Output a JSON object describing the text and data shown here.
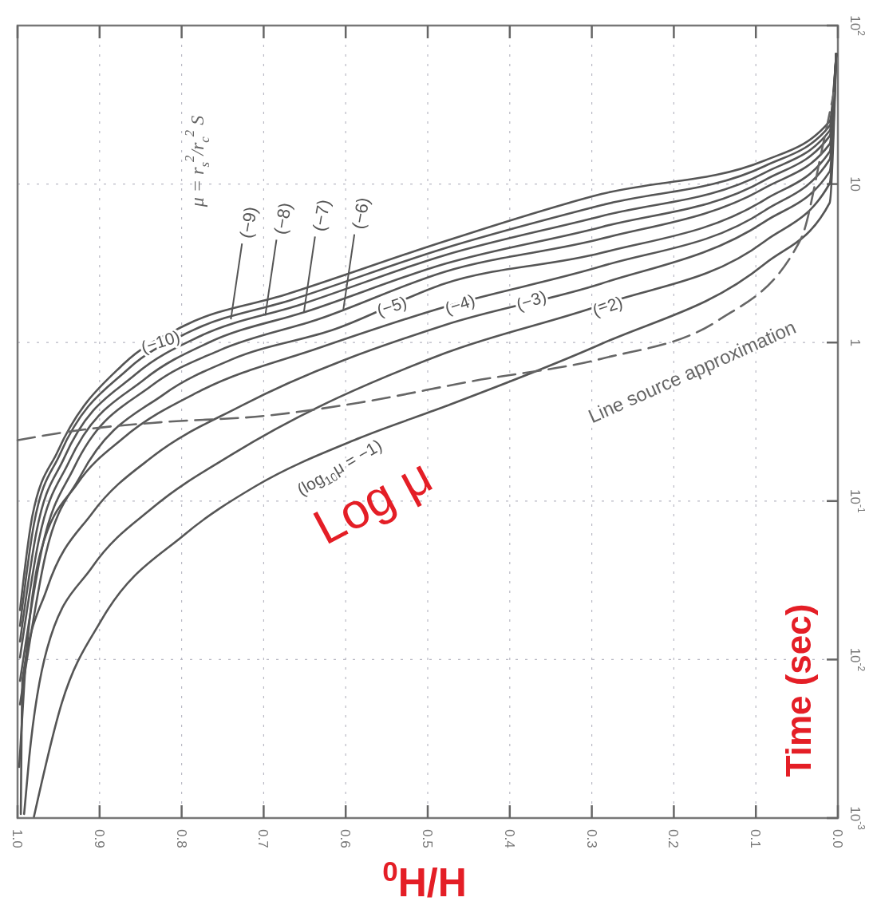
{
  "chart_data": {
    "type": "line",
    "xlabel": "$^{0}$H/H",
    "ylabel": "Time (sec)",
    "log": "y",
    "grid": true,
    "line_style": "solid",
    "marker": "none",
    "xlim": [
      1.0,
      0.0
    ],
    "xticks": [
      {
        "value": 1.0,
        "label": "1.0"
      },
      0.9,
      0.8,
      0.7,
      0.6,
      0.5,
      0.4,
      0.3,
      0.2,
      0.1,
      {
        "value": 0.0,
        "label": "0.0"
      }
    ],
    "ylim": [
      0.001,
      100
    ],
    "yticks": [
      {
        "value": 0.001,
        "label": "10$^{-3}$"
      },
      {
        "value": 0.01,
        "label": "10$^{-2}$"
      },
      {
        "value": 0.1,
        "label": "10$^{-1}$"
      },
      1,
      10,
      {
        "value": 100,
        "label": "10$^{2}$"
      }
    ],
    "series": [
      {
        "color": "#555555",
        "x": [
          0.997,
          0.982,
          0.951,
          0.871,
          0.795,
          0.673,
          0.479,
          0.288,
          0.089,
          0.01,
          0.002
        ],
        "values": [
          0.0205,
          0.0802,
          0.206,
          0.731,
          1.29,
          2.01,
          4.36,
          8.65,
          14.1,
          24.9,
          66.4
        ]
      },
      {
        "color": "#555555",
        "x": [
          0.997,
          0.98,
          0.948,
          0.865,
          0.787,
          0.666,
          0.479,
          0.288,
          0.089,
          0.01,
          0.002
        ],
        "values": [
          0.0163,
          0.0716,
          0.199,
          0.682,
          1.19,
          1.86,
          3.94,
          7.36,
          13.0,
          23.3,
          66.4
        ]
      },
      {
        "color": "#555555",
        "x": [
          0.997,
          0.977,
          0.943,
          0.855,
          0.777,
          0.656,
          0.479,
          0.288,
          0.089,
          0.01,
          0.002
        ],
        "values": [
          0.013,
          0.0638,
          0.188,
          0.637,
          1.1,
          1.73,
          3.56,
          6.28,
          11.8,
          21.7,
          66.4
        ]
      },
      {
        "color": "#555555",
        "x": [
          0.997,
          0.974,
          0.937,
          0.845,
          0.766,
          0.646,
          0.479,
          0.288,
          0.089,
          0.01,
          0.002
        ],
        "values": [
          0.0103,
          0.057,
          0.178,
          0.588,
          1.005,
          1.58,
          3.14,
          5.36,
          10.6,
          20.1,
          66.4
        ]
      },
      {
        "color": "#555555",
        "x": [
          0.997,
          0.97,
          0.931,
          0.836,
          0.753,
          0.632,
          0.479,
          0.288,
          0.089,
          0.01,
          0.002
        ],
        "values": [
          0.00733,
          0.0508,
          0.163,
          0.537,
          0.897,
          1.41,
          2.8,
          4.52,
          9.46,
          17.9,
          66.4
        ]
      },
      {
        "color": "#555555",
        "x": [
          0.997,
          0.966,
          0.923,
          0.821,
          0.739,
          0.612,
          0.479,
          0.288,
          0.089,
          0.01,
          0.002
        ],
        "values": [
          0.00521,
          0.0454,
          0.145,
          0.474,
          0.782,
          1.22,
          2.36,
          3.68,
          7.98,
          16.0,
          66.4
        ]
      },
      {
        "color": "#555555",
        "x": [
          0.998,
          0.991,
          0.972,
          0.927,
          0.871,
          0.777,
          0.632,
          0.479,
          0.288,
          0.089,
          0.01,
          0.002
        ],
        "values": [
          0.0021,
          0.00822,
          0.0475,
          0.129,
          0.25,
          0.496,
          0.927,
          1.68,
          3.03,
          6.81,
          14.3,
          66.4
        ]
      },
      {
        "color": "#555555",
        "x": [
          0.996,
          0.994,
          0.964,
          0.909,
          0.834,
          0.729,
          0.479,
          0.288,
          0.089,
          0.01,
          0.002
        ],
        "values": [
          0.00106,
          0.0075,
          0.0281,
          0.0839,
          0.193,
          0.395,
          1.29,
          2.36,
          5.8,
          12.0,
          66.4
        ]
      },
      {
        "color": "#555555",
        "x": [
          0.992,
          0.986,
          0.964,
          0.909,
          0.834,
          0.737,
          0.479,
          0.288,
          0.089,
          0.01,
          0.002
        ],
        "values": [
          0.00106,
          0.00235,
          0.0117,
          0.0383,
          0.0919,
          0.199,
          0.857,
          1.73,
          4.36,
          10.1,
          66.4
        ]
      },
      {
        "color": "#555555",
        "x": [
          0.98,
          0.946,
          0.897,
          0.796,
          0.71,
          0.583,
          0.479,
          0.288,
          0.089,
          0.01,
          0.002
        ],
        "values": [
          0.00102,
          0.00533,
          0.018,
          0.0617,
          0.124,
          0.25,
          0.395,
          0.982,
          3.14,
          7.62,
          66.4
        ]
      },
      {
        "color": "#666666",
        "line_style": "dashed",
        "x": [
          1.0,
          0.923,
          0.826,
          0.7,
          0.583,
          0.447,
          0.288,
          0.146,
          0.045,
          0.019,
          0.005
        ],
        "values": [
          0.242,
          0.281,
          0.314,
          0.344,
          0.418,
          0.569,
          0.791,
          1.38,
          4.52,
          16.9,
          37.6
        ]
      }
    ],
    "annotations": [
      "Log μ",
      "μ = r$_{s}$$^{2}$/r$_{c}$$^{2}$ S",
      "(log$_{10}$μ = −1)",
      "Line source approximation",
      {
        "text": "(−10)",
        "x": 0.826,
        "y": 1.02
      },
      {
        "text": "(−9)",
        "x": 0.74,
        "y": 1.4
      },
      {
        "text": "(−8)",
        "x": 0.698,
        "y": 1.48
      },
      {
        "text": "(−7)",
        "x": 0.651,
        "y": 1.55
      },
      {
        "text": "(−6)",
        "x": 0.603,
        "y": 1.6
      },
      {
        "text": "(−5)",
        "x": 0.544,
        "y": 1.71
      },
      {
        "text": "(−4)",
        "x": 0.461,
        "y": 1.76
      },
      {
        "text": "(−3)",
        "x": 0.374,
        "y": 1.86
      },
      {
        "text": "(−2)",
        "x": 0.281,
        "y": 1.71
      }
    ]
  }
}
